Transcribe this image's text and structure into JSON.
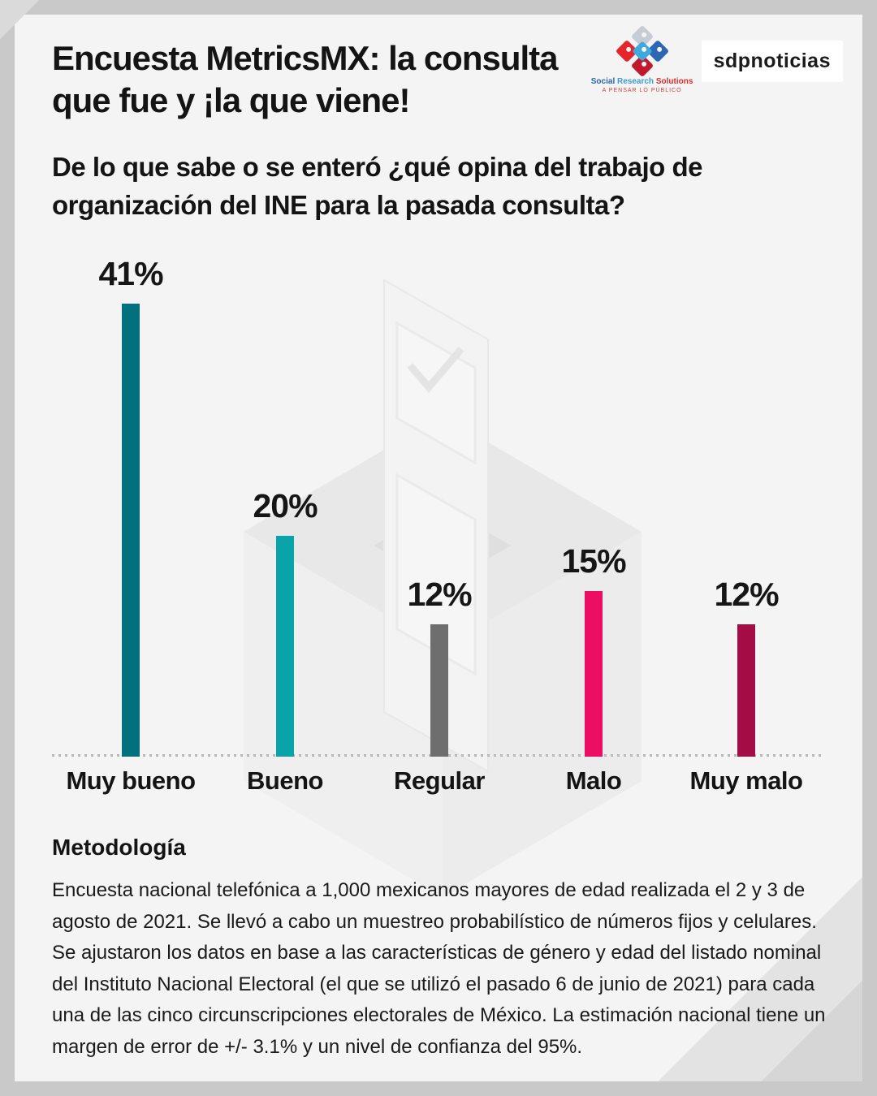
{
  "header": {
    "title_line1": "Encuesta MetricsMX: la consulta",
    "title_line2": "que fue y ¡la que viene!",
    "question": "De lo que sabe o se enteró ¿qué opina del trabajo de organización del INE para la pasada consulta?"
  },
  "logos": {
    "srs_word1": "Social",
    "srs_word2": "Research",
    "srs_word3": "Solutions",
    "srs_tagline": "A PENSAR LO PÚBLICO",
    "news_brand": "sdpnoticias"
  },
  "chart_data": {
    "type": "bar",
    "categories": [
      "Muy bueno",
      "Bueno",
      "Regular",
      "Malo",
      "Muy malo"
    ],
    "values": [
      41,
      20,
      12,
      15,
      12
    ],
    "value_labels": [
      "41%",
      "20%",
      "12%",
      "15%",
      "12%"
    ],
    "colors": [
      "#03707d",
      "#0aa3a9",
      "#6e6e6e",
      "#ec0e62",
      "#a30c45"
    ],
    "title": "Encuesta MetricsMX: opinión del trabajo de organización del INE para la pasada consulta",
    "xlabel": "",
    "ylabel": "",
    "unit": "%",
    "ylim": [
      0,
      45
    ],
    "grid": false,
    "legend": false,
    "baseline_style": "dotted"
  },
  "methodology": {
    "heading": "Metodología",
    "body": "Encuesta nacional telefónica a 1,000 mexicanos mayores de edad realizada el 2 y 3 de agosto de 2021. Se llevó a cabo un muestreo probabilístico de números fijos y celulares. Se ajustaron los datos en base a las características de género y edad del listado nominal del Instituto Nacional Electoral (el que se utilizó el pasado 6 de junio de 2021) para cada una de las cinco circunscripciones electorales de México. La estimación nacional tiene un margen de error de +/- 3.1% y un nivel de confianza del 95%."
  }
}
